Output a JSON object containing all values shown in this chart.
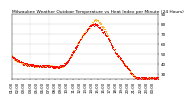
{
  "title": "Milwaukee Weather Outdoor Temperature vs Heat Index per Minute (24 Hours)",
  "bg_color": "#ffffff",
  "plot_bg": "#ffffff",
  "grid_color": "#cccccc",
  "temp_color": "#ff0000",
  "heat_color": "#ffaa00",
  "marker_size": 0.5,
  "ylim": [
    25,
    90
  ],
  "yticks": [
    30,
    40,
    50,
    60,
    70,
    80,
    90
  ],
  "ylabel_fontsize": 3.0,
  "xlabel_fontsize": 2.8,
  "title_fontsize": 3.2,
  "temp_data": [
    48,
    47,
    46,
    45,
    45,
    44,
    44,
    43,
    43,
    43,
    42,
    42,
    41,
    41,
    41,
    40,
    40,
    40,
    40,
    40,
    39,
    39,
    39,
    39,
    39,
    39,
    39,
    39,
    38,
    38,
    38,
    38,
    38,
    38,
    38,
    38,
    38,
    38,
    38,
    38,
    38,
    38,
    38,
    38,
    38,
    38,
    38,
    38,
    38,
    38,
    38,
    38,
    37,
    37,
    37,
    37,
    37,
    37,
    37,
    37,
    37,
    37,
    38,
    38,
    38,
    38,
    39,
    39,
    40,
    40,
    41,
    42,
    43,
    44,
    46,
    47,
    48,
    49,
    51,
    52,
    53,
    55,
    56,
    57,
    59,
    60,
    62,
    63,
    64,
    65,
    67,
    68,
    69,
    70,
    71,
    72,
    73,
    74,
    75,
    76,
    77,
    78,
    78,
    79,
    79,
    79,
    79,
    79,
    79,
    78,
    78,
    77,
    77,
    76,
    75,
    74,
    73,
    72,
    72,
    71,
    70,
    69,
    68,
    67,
    65,
    64,
    63,
    61,
    60,
    58,
    57,
    55,
    54,
    52,
    51,
    50,
    49,
    48,
    47,
    46,
    45,
    44,
    43,
    42,
    41,
    40,
    39,
    38,
    37,
    36,
    35,
    34,
    33,
    32,
    31,
    30,
    29,
    28,
    27,
    27,
    26,
    26,
    26,
    26,
    26,
    26,
    26,
    26,
    26,
    26,
    26,
    26,
    26,
    26,
    26,
    26,
    26,
    26,
    26,
    26,
    26,
    26,
    26,
    26,
    26,
    26,
    26,
    26,
    26,
    26
  ],
  "heat_data": [
    48,
    47,
    46,
    45,
    45,
    44,
    44,
    43,
    43,
    43,
    42,
    42,
    41,
    41,
    41,
    40,
    40,
    40,
    40,
    40,
    39,
    39,
    39,
    39,
    39,
    39,
    39,
    39,
    38,
    38,
    38,
    38,
    38,
    38,
    38,
    38,
    38,
    38,
    38,
    38,
    38,
    38,
    38,
    38,
    38,
    38,
    38,
    38,
    38,
    38,
    38,
    38,
    37,
    37,
    37,
    37,
    37,
    37,
    37,
    37,
    37,
    37,
    38,
    38,
    38,
    38,
    39,
    39,
    40,
    40,
    41,
    42,
    43,
    44,
    46,
    47,
    48,
    49,
    51,
    52,
    53,
    55,
    56,
    57,
    59,
    60,
    62,
    63,
    64,
    65,
    67,
    68,
    69,
    70,
    71,
    72,
    73,
    74,
    75,
    76,
    77,
    78,
    79,
    80,
    81,
    82,
    83,
    84,
    84,
    84,
    84,
    83,
    82,
    81,
    80,
    79,
    78,
    77,
    76,
    75,
    74,
    72,
    71,
    69,
    67,
    65,
    64,
    62,
    60,
    58,
    57,
    55,
    54,
    52,
    51,
    50,
    49,
    48,
    47,
    46,
    45,
    44,
    43,
    42,
    41,
    40,
    39,
    38,
    37,
    36,
    35,
    34,
    33,
    32,
    31,
    30,
    29,
    28,
    27,
    27,
    26,
    26,
    26,
    26,
    26,
    26,
    26,
    26,
    26,
    26,
    26,
    26,
    26,
    26,
    26,
    26,
    26,
    26,
    26,
    26,
    26,
    26,
    26,
    26,
    26,
    26,
    26,
    26,
    26,
    26
  ],
  "n_points": 1440,
  "vline_x": [
    180,
    360
  ],
  "vline_color": "#aaaaaa",
  "xtick_every": 60,
  "xtick_labels": [
    "01:00",
    "02:00",
    "03:00",
    "04:00",
    "05:00",
    "06:00",
    "07:00",
    "08:00",
    "09:00",
    "10:00",
    "11:00",
    "12:00",
    "13:00",
    "14:00",
    "15:00",
    "16:00",
    "17:00",
    "18:00",
    "19:00",
    "20:00",
    "21:00",
    "22:00",
    "23:00",
    "00:00"
  ]
}
